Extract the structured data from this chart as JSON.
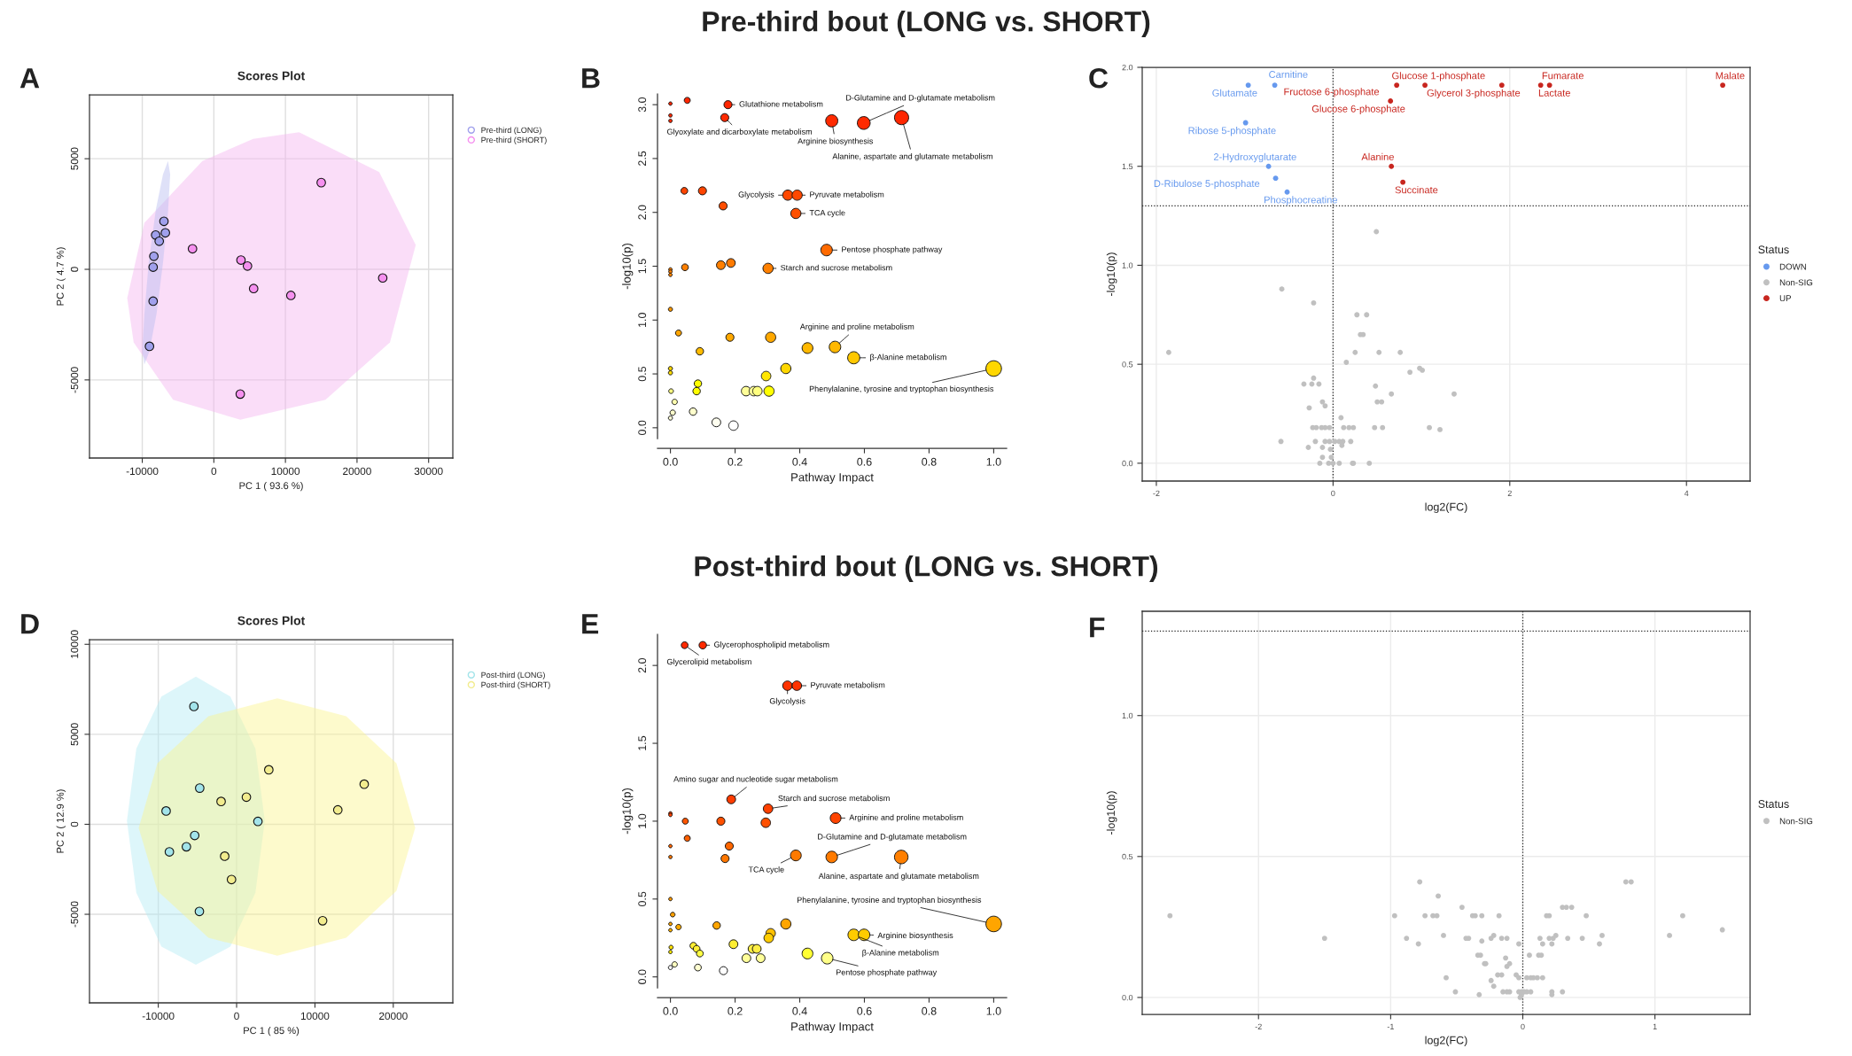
{
  "chart_data": [
    {
      "type": "scatter",
      "title": "Scores Plot",
      "xlabel": "PC 1 ( 93.6 %)",
      "ylabel": "PC 2 ( 4.7 %)",
      "xlim": [
        -17370,
        33380
      ],
      "ylim": [
        -8530,
        7890
      ],
      "xticks": [
        -10000,
        0,
        10000,
        20000,
        30000
      ],
      "yticks": [
        -5000,
        0,
        5000
      ],
      "grid": true,
      "legend": "right",
      "marker": "circle",
      "annotations": [
        "A",
        "Pre-third bout (LONG vs. SHORT)"
      ],
      "series": [
        {
          "type": "area",
          "marker": "none",
          "color": "#f5b3f0",
          "x": [
            11900,
            23100,
            28200,
            24600,
            15600,
            3700,
            -5700,
            -11200,
            -12100,
            -9700,
            -1600,
            5500
          ],
          "values": [
            6200,
            4400,
            1100,
            -3300,
            -5900,
            -6800,
            -5900,
            -3300,
            -1300,
            2100,
            4900,
            5900
          ]
        },
        {
          "type": "area",
          "marker": "none",
          "color": "#b8bdf0",
          "x": [
            -6400,
            -6100,
            -6400,
            -7100,
            -8000,
            -9000,
            -9700,
            -10000,
            -9700,
            -9100,
            -8100,
            -7100
          ],
          "values": [
            4900,
            4300,
            2600,
            300,
            -2000,
            -3700,
            -4300,
            -3700,
            -2000,
            300,
            2700,
            4300
          ]
        },
        {
          "type": "scatter",
          "name": "Pre-third (LONG)",
          "color": "#a0a0ec",
          "x": [
            -6970,
            -6770,
            -8130,
            -7630,
            -8380,
            -8480,
            -8480,
            -8990
          ],
          "values": [
            2170,
            1650,
            1550,
            1270,
            590,
            100,
            -1440,
            -3480
          ]
        },
        {
          "type": "scatter",
          "name": "Pre-third (SHORT)",
          "color": "#f590ef",
          "x": [
            -2980,
            3790,
            4700,
            5560,
            10760,
            15000,
            23590,
            3690
          ],
          "values": [
            930,
            420,
            150,
            -870,
            -1180,
            3920,
            -390,
            -5640
          ]
        }
      ]
    },
    {
      "type": "bubble",
      "xlabel": "Pathway Impact",
      "ylabel": "-log10(p)",
      "xlim": [
        -0.04,
        1.04
      ],
      "ylim": [
        -0.1,
        3.1
      ],
      "xticks": [
        {
          "value": 0,
          "label": "0.0"
        },
        {
          "value": 0.2,
          "label": "0.2"
        },
        {
          "value": 0.4,
          "label": "0.4"
        },
        {
          "value": 0.6,
          "label": "0.6"
        },
        {
          "value": 0.8,
          "label": "0.8"
        },
        {
          "value": 1,
          "label": "1.0"
        }
      ],
      "yticks": [
        {
          "value": 0,
          "label": "0.0"
        },
        {
          "value": 0.5,
          "label": "0.5"
        },
        {
          "value": 1,
          "label": "1.0"
        },
        {
          "value": 1.5,
          "label": "1.5"
        },
        {
          "value": 2,
          "label": "2.0"
        },
        {
          "value": 2.5,
          "label": "2.5"
        },
        {
          "value": 3,
          "label": "3.0"
        }
      ],
      "x": [
        0,
        0.052,
        0.178,
        0,
        0,
        0.168,
        0.499,
        0.598,
        0.715,
        0.043,
        0.099,
        0.163,
        0.363,
        0.392,
        0.388,
        0.483,
        0.045,
        0.156,
        0.187,
        0.302,
        0,
        0,
        0,
        0,
        0.025,
        0.184,
        0.31,
        0.091,
        0.424,
        0.509,
        0.567,
        1.0,
        0.357,
        0.296,
        0,
        0,
        0.085,
        0.081,
        0.002,
        0.234,
        0.258,
        0.269,
        0.305,
        0.013,
        0.007,
        0,
        0.07,
        0.142,
        0.195
      ],
      "values": [
        3.01,
        3.04,
        3.0,
        2.9,
        2.85,
        2.88,
        2.85,
        2.83,
        2.88,
        2.2,
        2.2,
        2.06,
        2.16,
        2.16,
        1.99,
        1.65,
        1.49,
        1.51,
        1.53,
        1.48,
        1.47,
        1.45,
        1.42,
        1.1,
        0.88,
        0.84,
        0.84,
        0.71,
        0.74,
        0.75,
        0.65,
        0.55,
        0.55,
        0.48,
        0.55,
        0.51,
        0.41,
        0.34,
        0.34,
        0.34,
        0.34,
        0.34,
        0.34,
        0.24,
        0.14,
        0.09,
        0.15,
        0.05,
        0.02
      ],
      "sizes": [
        0.05,
        0.15,
        0.27,
        0.05,
        0.05,
        0.27,
        0.61,
        0.68,
        0.83,
        0.19,
        0.27,
        0.27,
        0.43,
        0.43,
        0.43,
        0.55,
        0.19,
        0.32,
        0.32,
        0.43,
        0.05,
        0.05,
        0.05,
        0.07,
        0.15,
        0.27,
        0.43,
        0.23,
        0.48,
        0.55,
        0.61,
        1.0,
        0.43,
        0.37,
        0.07,
        0.07,
        0.23,
        0.23,
        0.09,
        0.37,
        0.37,
        0.37,
        0.43,
        0.12,
        0.12,
        0.07,
        0.23,
        0.32,
        0.37
      ],
      "colors": [
        "#ff2600",
        "#ff2600",
        "#ff2600",
        "#ff2a00",
        "#ff2a00",
        "#ff2a00",
        "#ff2a00",
        "#ff2a00",
        "#ff2600",
        "#ff4400",
        "#ff4400",
        "#ff4d00",
        "#ff4800",
        "#ff4800",
        "#ff5000",
        "#ff6a00",
        "#ff7f00",
        "#ff7f00",
        "#ff7a00",
        "#ff8000",
        "#ff8000",
        "#ff8000",
        "#ff8400",
        "#ff9900",
        "#ffa500",
        "#ffa800",
        "#ffa800",
        "#ffbb00",
        "#ffb800",
        "#ffb800",
        "#ffc800",
        "#ffd700",
        "#ffd700",
        "#ffe600",
        "#ffd700",
        "#ffdd00",
        "#ffff00",
        "#ffff00",
        "#ffff80",
        "#ffff99",
        "#ffff99",
        "#ffff80",
        "#ffff00",
        "#ffffb0",
        "#ffffcc",
        "#ffffd8",
        "#ffffcc",
        "#fffff0",
        "#ffffff"
      ],
      "annotations": [
        "B",
        {
          "text": "Glutathione metabolism",
          "x": 0.178,
          "y": 3.0
        },
        {
          "text": "Glyoxylate and dicarboxylate metabolism",
          "x": 0.168,
          "y": 2.88
        },
        {
          "text": "D-Glutamine and D-glutamate metabolism",
          "x": 0.598,
          "y": 2.83
        },
        {
          "text": "Arginine biosynthesis",
          "x": 0.499,
          "y": 2.85
        },
        {
          "text": "Alanine, aspartate and glutamate metabolism",
          "x": 0.715,
          "y": 2.88
        },
        {
          "text": "Glycolysis",
          "x": 0.363,
          "y": 2.16
        },
        {
          "text": "Pyruvate metabolism",
          "x": 0.392,
          "y": 2.16
        },
        {
          "text": "TCA cycle",
          "x": 0.388,
          "y": 1.99
        },
        {
          "text": "Pentose phosphate pathway",
          "x": 0.483,
          "y": 1.65
        },
        {
          "text": "Starch and sucrose metabolism",
          "x": 0.302,
          "y": 1.48
        },
        {
          "text": "Arginine and proline metabolism",
          "x": 0.509,
          "y": 0.75
        },
        {
          "text": "β-Alanine metabolism",
          "x": 0.567,
          "y": 0.65
        },
        {
          "text": "Phenylalanine, tyrosine and tryptophan biosynthesis",
          "x": 1.0,
          "y": 0.55
        }
      ]
    },
    {
      "type": "scatter",
      "xlabel": "log2(FC)",
      "ylabel": "-log10(p)",
      "legend_title": "Status",
      "xlim": [
        -2.16,
        4.72
      ],
      "ylim": [
        -0.09,
        2.0
      ],
      "xticks": [
        -2,
        0,
        2,
        4
      ],
      "yticks": [
        {
          "value": 0,
          "label": "0.0"
        },
        {
          "value": 0.5,
          "label": "0.5"
        },
        {
          "value": 1,
          "label": "1.0"
        },
        {
          "value": 1.5,
          "label": "1.5"
        },
        {
          "value": 2,
          "label": "2.0"
        }
      ],
      "grid": true,
      "legend": "right",
      "marker": "circle",
      "ref_lines": [
        {
          "axis": "x",
          "value": 0,
          "line_style": "dotted"
        },
        {
          "axis": "y",
          "value": 1.3,
          "line_style": "dotted"
        }
      ],
      "series": [
        {
          "type": "scatter",
          "name": "DOWN",
          "color": "#6699ee",
          "x": [
            -0.96,
            -0.66,
            -0.99,
            -0.73,
            -0.65,
            -0.52
          ],
          "values": [
            1.91,
            1.91,
            1.72,
            1.5,
            1.44,
            1.37
          ]
        },
        {
          "type": "scatter",
          "name": "Non-SIG",
          "color": "#c0c0c0",
          "x": [
            0.49,
            -0.58,
            -0.22,
            0.27,
            0.38,
            0.31,
            0.34,
            -1.86,
            0.25,
            0.52,
            0.76,
            0.15,
            0.98,
            1.01,
            0.87,
            -0.22,
            -0.33,
            -0.24,
            -0.16,
            0.48,
            0.66,
            1.37,
            -0.12,
            -0.09,
            -0.27,
            0.5,
            0.55,
            0.09,
            -0.23,
            -0.19,
            -0.13,
            -0.09,
            -0.04,
            0.12,
            0.18,
            0.23,
            0.47,
            0.56,
            1.09,
            1.21,
            -0.59,
            -0.2,
            -0.09,
            -0.04,
            0.02,
            0.07,
            0.11,
            0.2,
            0.1,
            -0.28,
            -0.12,
            -0.03,
            -0.12,
            -0.02,
            -0.15,
            -0.05,
            0,
            0.07,
            0.22,
            0.23,
            0.41
          ],
          "values": [
            1.17,
            0.88,
            0.81,
            0.75,
            0.75,
            0.65,
            0.65,
            0.56,
            0.56,
            0.56,
            0.56,
            0.51,
            0.48,
            0.47,
            0.46,
            0.43,
            0.4,
            0.4,
            0.4,
            0.39,
            0.35,
            0.35,
            0.31,
            0.29,
            0.28,
            0.31,
            0.31,
            0.23,
            0.18,
            0.18,
            0.18,
            0.18,
            0.18,
            0.18,
            0.18,
            0.18,
            0.18,
            0.18,
            0.18,
            0.17,
            0.11,
            0.11,
            0.11,
            0.11,
            0.11,
            0.11,
            0.11,
            0.11,
            0.09,
            0.08,
            0.08,
            0.07,
            0.03,
            0.03,
            0,
            0,
            0,
            0,
            0,
            0,
            0
          ]
        },
        {
          "type": "scatter",
          "name": "UP",
          "color": "#c8261f",
          "x": [
            0.72,
            1.04,
            1.91,
            2.35,
            2.45,
            4.41,
            0.65,
            0.66,
            0.79
          ],
          "values": [
            1.91,
            1.91,
            1.91,
            1.91,
            1.91,
            1.91,
            1.83,
            1.5,
            1.42
          ]
        }
      ],
      "annotations": [
        "C",
        {
          "text": "Carnitine",
          "x": -0.66,
          "y": 1.91
        },
        {
          "text": "Glutamate",
          "x": -0.96,
          "y": 1.91
        },
        {
          "text": "Ribose 5-phosphate",
          "x": -0.99,
          "y": 1.72
        },
        {
          "text": "2-Hydroxyglutarate",
          "x": -0.73,
          "y": 1.5
        },
        {
          "text": "D-Ribulose 5-phosphate",
          "x": -0.65,
          "y": 1.44
        },
        {
          "text": "Phosphocreatine",
          "x": -0.52,
          "y": 1.37
        },
        {
          "text": "Fructose 6-phosphate",
          "x": 0.72,
          "y": 1.91
        },
        {
          "text": "Glucose 1-phosphate",
          "x": 1.04,
          "y": 1.91
        },
        {
          "text": "Glucose 6-phosphate",
          "x": 0.65,
          "y": 1.83
        },
        {
          "text": "Glycerol 3-phosphate",
          "x": 1.91,
          "y": 1.91
        },
        {
          "text": "Fumarate",
          "x": 2.35,
          "y": 1.91
        },
        {
          "text": "Lactate",
          "x": 2.45,
          "y": 1.91
        },
        {
          "text": "Malate",
          "x": 4.41,
          "y": 1.91
        },
        {
          "text": "Alanine",
          "x": 0.66,
          "y": 1.5
        },
        {
          "text": "Succinate",
          "x": 0.79,
          "y": 1.42
        }
      ]
    },
    {
      "type": "scatter",
      "title": "Scores Plot",
      "xlabel": "PC 1 ( 85 %)",
      "ylabel": "PC 2 ( 12.9 %)",
      "xlim": [
        -18780,
        27600
      ],
      "ylim": [
        -9920,
        10260
      ],
      "xticks": [
        -10000,
        0,
        10000,
        20000
      ],
      "yticks": [
        -5000,
        0,
        5000,
        10000
      ],
      "grid": true,
      "legend": "right",
      "marker": "circle",
      "annotations": [
        "D",
        "Post-third bout (LONG vs. SHORT)"
      ],
      "series": [
        {
          "type": "area",
          "marker": "none",
          "color": "#b3ecf5",
          "x": [
            -5200,
            -800,
            2400,
            3600,
            2400,
            -800,
            -5200,
            -9600,
            -12800,
            -14000,
            -12800,
            -9600
          ],
          "values": [
            8200,
            7100,
            4200,
            200,
            -3800,
            -6800,
            -7800,
            -6800,
            -3800,
            200,
            4200,
            7100
          ]
        },
        {
          "type": "area",
          "marker": "none",
          "color": "#fbf38f",
          "x": [
            5200,
            14000,
            20400,
            22800,
            20400,
            14000,
            5200,
            -3600,
            -10100,
            -12500,
            -10100,
            -3600
          ],
          "values": [
            7000,
            6000,
            3400,
            -200,
            -3700,
            -6300,
            -7300,
            -6300,
            -3700,
            -200,
            3400,
            6000
          ]
        },
        {
          "type": "scatter",
          "name": "Post-third (LONG)",
          "color": "#a3e4ea",
          "x": [
            -5450,
            -4710,
            -9000,
            2720,
            -5350,
            -6410,
            -8580,
            -4750
          ],
          "values": [
            6550,
            2010,
            740,
            160,
            -620,
            -1250,
            -1530,
            -4840
          ]
        },
        {
          "type": "scatter",
          "name": "Post-third (SHORT)",
          "color": "#f2ec8e",
          "x": [
            4110,
            1250,
            -1980,
            12920,
            16290,
            -1520,
            -650,
            10980
          ],
          "values": [
            3030,
            1510,
            1270,
            800,
            2230,
            -1770,
            -3070,
            -5360
          ]
        }
      ]
    },
    {
      "type": "bubble",
      "xlabel": "Pathway Impact",
      "ylabel": "-log10(p)",
      "xlim": [
        -0.04,
        1.04
      ],
      "ylim": [
        -0.07,
        2.2
      ],
      "xticks": [
        {
          "value": 0,
          "label": "0.0"
        },
        {
          "value": 0.2,
          "label": "0.2"
        },
        {
          "value": 0.4,
          "label": "0.4"
        },
        {
          "value": 0.6,
          "label": "0.6"
        },
        {
          "value": 0.8,
          "label": "0.8"
        },
        {
          "value": 1,
          "label": "1.0"
        }
      ],
      "yticks": [
        {
          "value": 0,
          "label": "0.0"
        },
        {
          "value": 0.5,
          "label": "0.5"
        },
        {
          "value": 1,
          "label": "1.0"
        },
        {
          "value": 1.5,
          "label": "1.5"
        },
        {
          "value": 2,
          "label": "2.0"
        }
      ],
      "x": [
        0.044,
        0.1,
        0.362,
        0.391,
        0.188,
        0.302,
        0.511,
        0,
        0,
        0.046,
        0.156,
        0.295,
        0.052,
        0,
        0.182,
        0,
        0.169,
        0.388,
        0.499,
        0.714,
        0,
        0.007,
        0,
        0.025,
        0,
        0.143,
        0.357,
        1.0,
        0.31,
        0.304,
        0.567,
        0.599,
        0.002,
        0,
        0.071,
        0.081,
        0.091,
        0.195,
        0.254,
        0.267,
        0.235,
        0.279,
        0.424,
        0.485,
        0.013,
        0,
        0.085,
        0.164
      ],
      "values": [
        2.13,
        2.13,
        1.87,
        1.87,
        1.14,
        1.08,
        1.02,
        1.05,
        1.04,
        1.0,
        1.0,
        0.99,
        0.89,
        0.84,
        0.84,
        0.77,
        0.76,
        0.78,
        0.77,
        0.77,
        0.5,
        0.4,
        0.34,
        0.32,
        0.3,
        0.33,
        0.34,
        0.34,
        0.28,
        0.25,
        0.27,
        0.27,
        0.19,
        0.16,
        0.2,
        0.18,
        0.15,
        0.21,
        0.18,
        0.18,
        0.12,
        0.12,
        0.15,
        0.12,
        0.08,
        0.06,
        0.06,
        0.04
      ],
      "sizes": [
        0.19,
        0.23,
        0.37,
        0.37,
        0.32,
        0.37,
        0.48,
        0.05,
        0.05,
        0.15,
        0.27,
        0.37,
        0.15,
        0.05,
        0.27,
        0.05,
        0.27,
        0.48,
        0.55,
        0.76,
        0.05,
        0.09,
        0.05,
        0.12,
        0.05,
        0.23,
        0.43,
        1.0,
        0.37,
        0.37,
        0.55,
        0.55,
        0.07,
        0.05,
        0.19,
        0.19,
        0.19,
        0.32,
        0.32,
        0.32,
        0.32,
        0.32,
        0.48,
        0.55,
        0.12,
        0.07,
        0.19,
        0.27
      ],
      "colors": [
        "#ff2a00",
        "#ff2a00",
        "#ff3300",
        "#ff3300",
        "#ff3c00",
        "#ff4000",
        "#ff4400",
        "#ff4400",
        "#ff4400",
        "#ff5500",
        "#ff5000",
        "#ff5000",
        "#ff6000",
        "#ff6600",
        "#ff6600",
        "#ff7700",
        "#ff7700",
        "#ff7a00",
        "#ff7a00",
        "#ff7f00",
        "#ff9900",
        "#ffa000",
        "#ffa500",
        "#ffaa00",
        "#ffb000",
        "#ffa500",
        "#ffa500",
        "#ffa500",
        "#ffc000",
        "#ffcc00",
        "#ffcc00",
        "#ffcc00",
        "#ffe000",
        "#ffee00",
        "#ffee33",
        "#ffee33",
        "#ffff44",
        "#ffee33",
        "#ffee44",
        "#ffee44",
        "#ffff99",
        "#ffff99",
        "#ffff33",
        "#ffff88",
        "#ffffc0",
        "#ffffff",
        "#ffffd0",
        "#ffffff"
      ],
      "annotations": [
        "E",
        {
          "text": "Glycerophospholipid metabolism",
          "x": 0.1,
          "y": 2.13
        },
        {
          "text": "Glycerolipid metabolism",
          "x": 0.044,
          "y": 2.13
        },
        {
          "text": "Pyruvate metabolism",
          "x": 0.391,
          "y": 1.87
        },
        {
          "text": "Glycolysis",
          "x": 0.362,
          "y": 1.87
        },
        {
          "text": "Amino sugar and nucleotide sugar metabolism",
          "x": 0.188,
          "y": 1.14
        },
        {
          "text": "Starch and sucrose metabolism",
          "x": 0.302,
          "y": 1.08
        },
        {
          "text": "Arginine and proline metabolism",
          "x": 0.511,
          "y": 1.02
        },
        {
          "text": "D-Glutamine and D-glutamate metabolism",
          "x": 0.499,
          "y": 0.77
        },
        {
          "text": "TCA cycle",
          "x": 0.388,
          "y": 0.78
        },
        {
          "text": "Alanine, aspartate and glutamate metabolism",
          "x": 0.714,
          "y": 0.77
        },
        {
          "text": "Phenylalanine, tyrosine and tryptophan biosynthesis",
          "x": 1.0,
          "y": 0.34
        },
        {
          "text": "Arginine biosynthesis",
          "x": 0.599,
          "y": 0.27
        },
        {
          "text": "β-Alanine metabolism",
          "x": 0.567,
          "y": 0.27
        },
        {
          "text": "Pentose phosphate pathway",
          "x": 0.485,
          "y": 0.12
        }
      ]
    },
    {
      "type": "scatter",
      "xlabel": "log2(FC)",
      "ylabel": "-log10(p)",
      "legend_title": "Status",
      "xlim": [
        -2.88,
        1.72
      ],
      "ylim": [
        -0.06,
        1.37
      ],
      "xticks": [
        -2,
        -1,
        0,
        1
      ],
      "yticks": [
        {
          "value": 0,
          "label": "0.0"
        },
        {
          "value": 0.5,
          "label": "0.5"
        },
        {
          "value": 1,
          "label": "1.0"
        }
      ],
      "grid": true,
      "legend": "right",
      "marker": "circle",
      "ref_lines": [
        {
          "axis": "x",
          "value": 0,
          "line_style": "dotted"
        },
        {
          "axis": "y",
          "value": 1.3,
          "line_style": "dotted"
        }
      ],
      "annotations": [
        "F"
      ],
      "series": [
        {
          "type": "scatter",
          "name": "Non-SIG",
          "color": "#c0c0c0",
          "x": [
            -2.67,
            -1.5,
            -0.97,
            -0.78,
            -0.64,
            -0.74,
            -0.68,
            -0.65,
            -0.88,
            -0.79,
            -0.6,
            -0.58,
            -0.51,
            -0.46,
            -0.43,
            -0.41,
            -0.38,
            -0.36,
            -0.31,
            -0.31,
            -0.34,
            -0.32,
            -0.29,
            -0.28,
            -0.18,
            -0.24,
            -0.22,
            -0.16,
            -0.12,
            -0.19,
            -0.16,
            -0.24,
            -0.22,
            -0.13,
            -0.12,
            -0.1,
            -0.05,
            -0.03,
            -0.15,
            -0.12,
            -0.1,
            -0.03,
            -0.33,
            -0.03,
            -0.01,
            0.01,
            0.03,
            0.06,
            -0.02,
            -0.01,
            0.05,
            0.03,
            0.06,
            0.08,
            0.11,
            0.15,
            0.13,
            0.12,
            0.14,
            0.15,
            0.18,
            0.2,
            0.2,
            0.23,
            0.22,
            0.25,
            0.22,
            0.22,
            0.3,
            0.33,
            0.37,
            0.34,
            0.3,
            0.45,
            0.48,
            0.58,
            0.6,
            0.78,
            0.82,
            1.11,
            1.21,
            1.51
          ],
          "values": [
            0.29,
            0.21,
            0.29,
            0.41,
            0.36,
            0.29,
            0.29,
            0.29,
            0.21,
            0.19,
            0.22,
            0.07,
            0.02,
            0.32,
            0.21,
            0.21,
            0.29,
            0.29,
            0.29,
            0.2,
            0.15,
            0.15,
            0.12,
            0.12,
            0.29,
            0.21,
            0.22,
            0.21,
            0.21,
            0.08,
            0.08,
            0.06,
            0.04,
            0.14,
            0.11,
            0.12,
            0.08,
            0.07,
            0.02,
            0.02,
            0.02,
            0.19,
            0.01,
            0.02,
            0.02,
            0.02,
            0.02,
            0.02,
            0,
            0.01,
            0.15,
            0.07,
            0.07,
            0.07,
            0.07,
            0.07,
            0.21,
            0.15,
            0.15,
            0.19,
            0.29,
            0.29,
            0.21,
            0.21,
            0.19,
            0.22,
            0.02,
            0.01,
            0.32,
            0.32,
            0.32,
            0.21,
            0.02,
            0.21,
            0.29,
            0.19,
            0.22,
            0.41,
            0.41,
            0.22,
            0.29,
            0.24
          ]
        }
      ]
    }
  ]
}
